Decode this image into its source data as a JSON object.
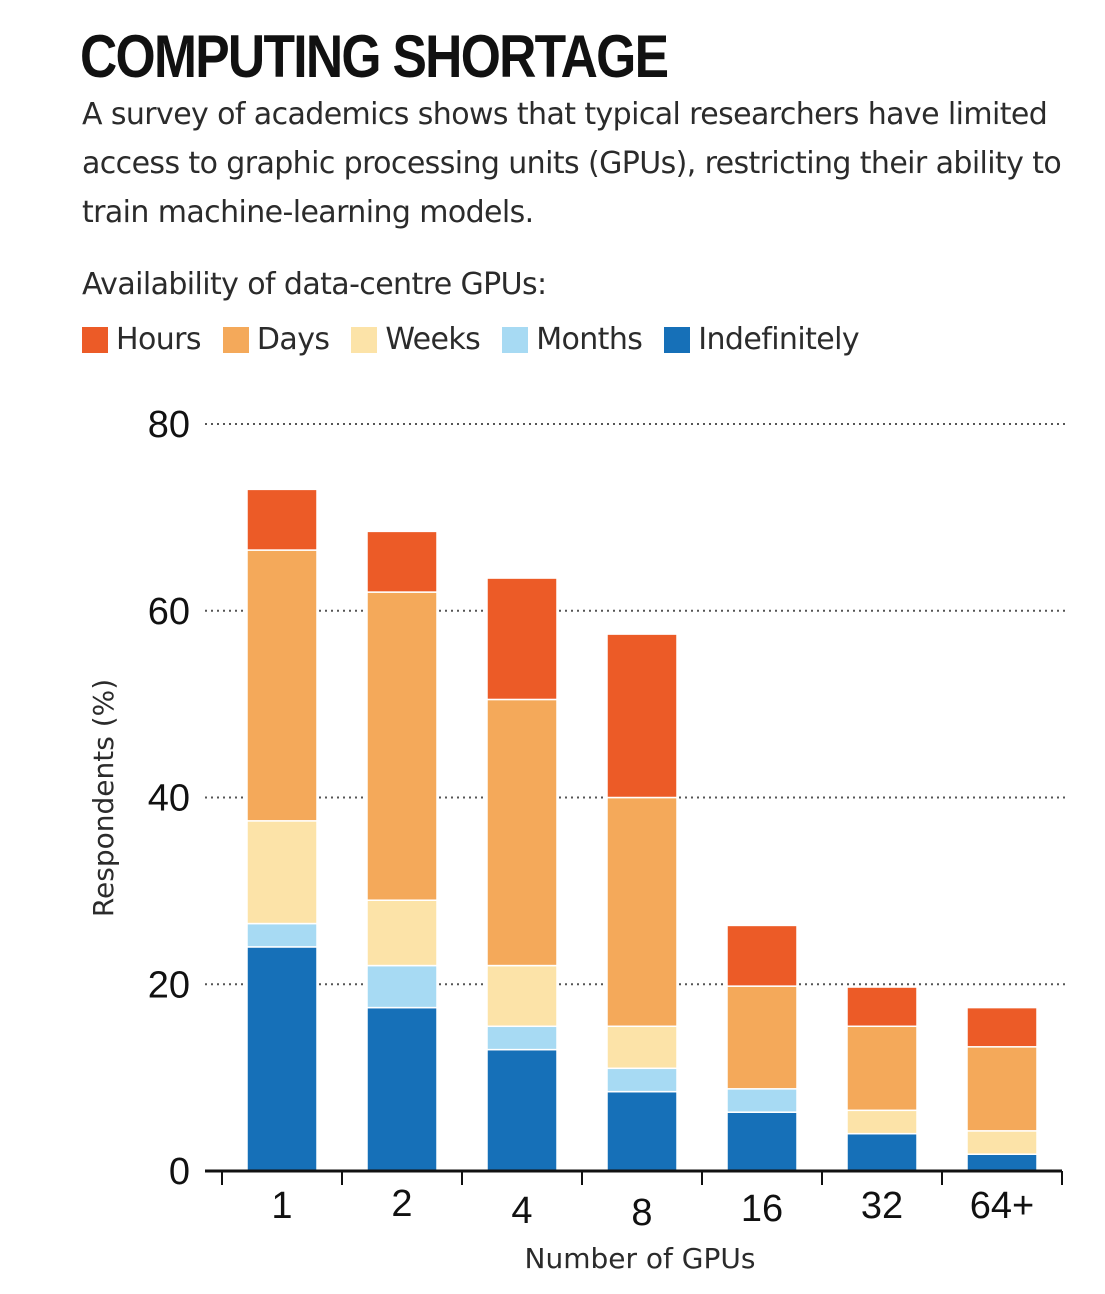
{
  "chart_data": {
    "type": "bar",
    "stacked": true,
    "title": "COMPUTING SHORTAGE",
    "subtitle": "A survey of academics shows that typical researchers have limited access to graphic processing units (GPUs), restricting their ability to train machine-learning models.",
    "legend_title": "Availability of data-centre GPUs:",
    "legend_placement": "top",
    "xlabel": "Number of GPUs",
    "ylabel": "Respondents (%)",
    "ylim": [
      0,
      80
    ],
    "yticks": [
      0,
      20,
      40,
      60,
      80
    ],
    "grid": "dotted horizontal",
    "categories": [
      "1",
      "2",
      "4",
      "8",
      "16",
      "32",
      "64+"
    ],
    "series": [
      {
        "name": "Indefinitely",
        "color": "#1670B8",
        "values": [
          24,
          17.5,
          13,
          8.5,
          6.3,
          4,
          1.8
        ]
      },
      {
        "name": "Months",
        "color": "#A7DAF3",
        "values": [
          2.5,
          4.5,
          2.5,
          2.5,
          2.5,
          0,
          0
        ]
      },
      {
        "name": "Weeks",
        "color": "#FCE3A8",
        "values": [
          11,
          7,
          6.5,
          4.5,
          0,
          2.5,
          2.5
        ]
      },
      {
        "name": "Days",
        "color": "#F4A95A",
        "values": [
          29,
          33,
          28.5,
          24.5,
          11,
          9,
          9
        ]
      },
      {
        "name": "Hours",
        "color": "#EC5B27",
        "values": [
          6.5,
          6.5,
          13,
          17.5,
          6.5,
          4.2,
          4.2
        ]
      }
    ],
    "legend_order": [
      "Hours",
      "Days",
      "Weeks",
      "Months",
      "Indefinitely"
    ]
  }
}
